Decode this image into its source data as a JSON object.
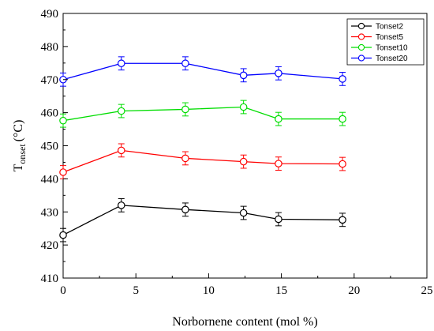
{
  "chart_data": {
    "type": "line",
    "x": [
      0,
      4,
      8.4,
      12.4,
      14.8,
      19.2
    ],
    "xlabel": "Norbornene content (mol %)",
    "ylabel": {
      "main": "T",
      "sub": "onset",
      "unit": "(°C)"
    },
    "xlim": [
      0,
      25
    ],
    "ylim": [
      410,
      490
    ],
    "xticks": [
      "0",
      "5",
      "10",
      "15",
      "20",
      "25"
    ],
    "yticks": [
      "410",
      "420",
      "430",
      "440",
      "450",
      "460",
      "470",
      "480",
      "490"
    ],
    "grid": false,
    "legend_position": "top-right",
    "series": [
      {
        "name": "Tonset2",
        "color": "#000000",
        "values": [
          423.0,
          432.0,
          430.7,
          429.7,
          427.8,
          427.6
        ],
        "errors": [
          2.0,
          2.0,
          2.0,
          2.0,
          2.0,
          2.0
        ]
      },
      {
        "name": "Tonset5",
        "color": "#ff0000",
        "values": [
          442.0,
          448.6,
          446.2,
          445.2,
          444.6,
          444.5
        ],
        "errors": [
          2.0,
          2.0,
          2.0,
          2.0,
          2.0,
          2.0
        ]
      },
      {
        "name": "Tonset10",
        "color": "#00dd00",
        "values": [
          457.6,
          460.5,
          461.0,
          461.7,
          458.1,
          458.1
        ],
        "errors": [
          2.0,
          2.0,
          2.0,
          2.0,
          2.0,
          2.0
        ]
      },
      {
        "name": "Tonset20",
        "color": "#0000ff",
        "values": [
          470.0,
          474.9,
          474.9,
          471.3,
          471.9,
          470.2
        ],
        "errors": [
          2.0,
          2.0,
          2.0,
          2.0,
          2.0,
          2.0
        ]
      }
    ]
  }
}
